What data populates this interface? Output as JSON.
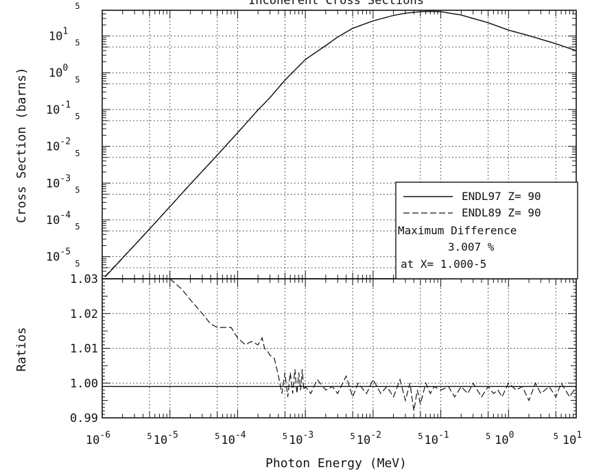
{
  "chart_data": [
    {
      "type": "line",
      "title": "Incoherent Cross Sections",
      "xlabel": "Photon Energy (MeV)",
      "ylabel": "Cross Section (barns)",
      "xscale": "log",
      "yscale": "log",
      "xlim": [
        1e-06,
        10
      ],
      "ylim": [
        2.5e-06,
        50
      ],
      "x_tick_labels": [
        {
          "base": "10",
          "exp": "-6"
        },
        {
          "base": "10",
          "exp": "-5"
        },
        {
          "base": "10",
          "exp": "-4"
        },
        {
          "base": "10",
          "exp": "-3"
        },
        {
          "base": "10",
          "exp": "-2"
        },
        {
          "base": "10",
          "exp": "-1"
        },
        {
          "base": "10",
          "exp": "0"
        },
        {
          "base": "10",
          "exp": "1"
        }
      ],
      "x_minor_label": "5",
      "y_tick_labels": [
        {
          "base": "10",
          "exp": "1"
        },
        {
          "base": "10",
          "exp": "0"
        },
        {
          "base": "10",
          "exp": "-1"
        },
        {
          "base": "10",
          "exp": "-2"
        },
        {
          "base": "10",
          "exp": "-3"
        },
        {
          "base": "10",
          "exp": "-4"
        },
        {
          "base": "10",
          "exp": "-5"
        }
      ],
      "y_minor_label": "5",
      "grid": true,
      "legend_position": "bottom-right",
      "series": [
        {
          "name": "ENDL97 Z= 90",
          "style": "solid",
          "x": [
            1.1e-06,
            2e-06,
            5e-06,
            1e-05,
            2e-05,
            5e-05,
            0.0001,
            0.0002,
            0.0003,
            0.0005,
            0.001,
            0.002,
            0.003,
            0.005,
            0.01,
            0.02,
            0.03,
            0.05,
            0.07,
            0.1,
            0.2,
            0.5,
            1,
            2,
            5,
            10
          ],
          "y": [
            2.8e-06,
            9.12e-06,
            5.62e-05,
            0.000229,
            0.000933,
            0.00575,
            0.0234,
            0.0977,
            0.21,
            0.631,
            2.29,
            5.5,
            9.33,
            16.2,
            25.7,
            36.3,
            41.7,
            45.7,
            46.8,
            45.7,
            37.2,
            22.9,
            14.5,
            10.2,
            6.17,
            3.98
          ]
        },
        {
          "name": "ENDL89 Z= 90",
          "style": "dashed",
          "x": [
            1.1e-06,
            2e-06,
            5e-06,
            1e-05,
            2e-05,
            5e-05,
            0.0001,
            0.0002,
            0.0003,
            0.0005,
            0.001,
            0.002,
            0.003,
            0.005,
            0.01,
            0.02,
            0.03,
            0.05,
            0.07,
            0.1,
            0.2,
            0.5,
            1,
            2,
            5,
            10
          ],
          "y": [
            2.9e-06,
            9.3e-06,
            5.68e-05,
            0.000231,
            0.00094,
            0.00578,
            0.0235,
            0.0978,
            0.21,
            0.631,
            2.29,
            5.5,
            9.33,
            16.2,
            25.7,
            36.3,
            41.7,
            45.7,
            46.8,
            45.7,
            37.2,
            22.9,
            14.5,
            10.2,
            6.17,
            3.98
          ]
        }
      ],
      "legend_note": {
        "line1": "Maximum Difference",
        "line2": "3.007 %",
        "line3": "at X= 1.000-5"
      }
    },
    {
      "type": "line",
      "xlabel": "Photon Energy (MeV)",
      "ylabel": "Ratios",
      "xscale": "log",
      "xlim": [
        1e-06,
        10
      ],
      "ylim": [
        0.99,
        1.03
      ],
      "y_tick_labels": [
        "1.03",
        "1.02",
        "1.01",
        "1.00",
        "0.99"
      ],
      "y_ticks": [
        1.03,
        1.02,
        1.01,
        1.0,
        0.99
      ],
      "grid": true,
      "series": [
        {
          "name": "ENDL97 Z= 90",
          "style": "solid",
          "x": [
            1e-06,
            10
          ],
          "y": [
            0.999,
            0.999
          ]
        },
        {
          "name": "ENDL89 Z= 90",
          "style": "dashed",
          "x": [
            1e-05,
            1.5e-05,
            2e-05,
            3e-05,
            4e-05,
            5e-05,
            6e-05,
            8e-05,
            0.0001,
            0.00013,
            0.00016,
            0.0002,
            0.00023,
            0.00025,
            0.00028,
            0.0003,
            0.00035,
            0.0004,
            0.00045,
            0.0005,
            0.00055,
            0.0006,
            0.00065,
            0.0007,
            0.00075,
            0.0008,
            0.00085,
            0.0009,
            0.00095,
            0.001,
            0.0012,
            0.0015,
            0.002,
            0.0025,
            0.003,
            0.004,
            0.005,
            0.006,
            0.008,
            0.01,
            0.013,
            0.016,
            0.02,
            0.025,
            0.03,
            0.035,
            0.04,
            0.045,
            0.05,
            0.06,
            0.07,
            0.08,
            0.1,
            0.13,
            0.16,
            0.2,
            0.25,
            0.3,
            0.4,
            0.5,
            0.6,
            0.7,
            0.8,
            1,
            1.3,
            1.6,
            2,
            2.5,
            3,
            4,
            5,
            6,
            8,
            10
          ],
          "y": [
            1.03,
            1.027,
            1.024,
            1.02,
            1.017,
            1.016,
            1.016,
            1.016,
            1.013,
            1.011,
            1.012,
            1.011,
            1.013,
            1.01,
            1.009,
            1.008,
            1.007,
            1.002,
            0.997,
            1.003,
            0.996,
            1.003,
            0.997,
            1.004,
            0.997,
            1.003,
            0.998,
            1.004,
            0.998,
            0.999,
            0.997,
            1.001,
            0.998,
            0.999,
            0.997,
            1.002,
            0.996,
            1.0,
            0.997,
            1.001,
            0.997,
            0.999,
            0.996,
            1.001,
            0.995,
            1.0,
            0.992,
            0.998,
            0.994,
            1.0,
            0.997,
            0.999,
            0.998,
            0.999,
            0.996,
            0.999,
            0.997,
            1.0,
            0.996,
            0.999,
            0.997,
            0.998,
            0.996,
            1.0,
            0.998,
            0.999,
            0.995,
            1.0,
            0.997,
            0.999,
            0.996,
            1.0,
            0.996,
            0.999
          ]
        }
      ]
    }
  ]
}
